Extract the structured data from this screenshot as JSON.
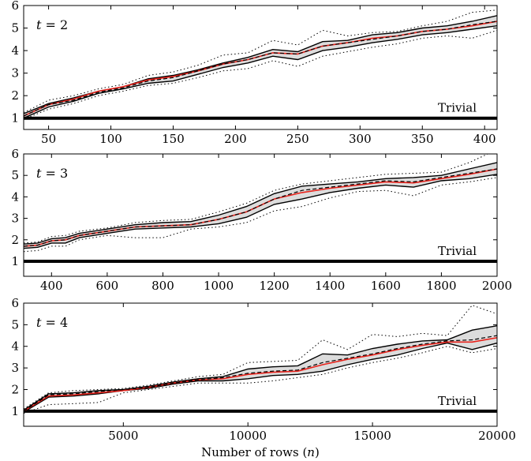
{
  "figure": {
    "xlabel": "Number of rows (n)",
    "xlabel_prefix": "Number of rows (",
    "xlabel_var": "n",
    "xlabel_suffix": ")"
  },
  "chart_data": [
    {
      "type": "line",
      "panel_label": "t = 2",
      "panel_var": "t",
      "panel_eq": " = 2",
      "trivial_label": "Trivial",
      "trivial_value": 1,
      "xlim": [
        30,
        410
      ],
      "ylim": [
        0.5,
        6
      ],
      "xticks": [
        50,
        100,
        150,
        200,
        250,
        300,
        350,
        400
      ],
      "yticks": [
        1,
        2,
        3,
        4,
        5,
        6
      ],
      "x": [
        30,
        50,
        70,
        90,
        110,
        130,
        150,
        170,
        190,
        210,
        230,
        250,
        270,
        290,
        310,
        330,
        350,
        370,
        390,
        410
      ],
      "series": [
        {
          "role": "red-line",
          "values": [
            1.1,
            1.6,
            1.85,
            2.2,
            2.4,
            2.7,
            2.85,
            3.1,
            3.4,
            3.6,
            3.9,
            3.85,
            4.2,
            4.35,
            4.55,
            4.65,
            4.85,
            4.95,
            5.1,
            5.3
          ]
        },
        {
          "role": "dashed",
          "values": [
            1.1,
            1.6,
            1.8,
            2.15,
            2.35,
            2.65,
            2.8,
            3.1,
            3.4,
            3.6,
            3.9,
            3.85,
            4.2,
            4.35,
            4.5,
            4.65,
            4.85,
            4.95,
            5.15,
            5.3
          ]
        },
        {
          "role": "upper-band",
          "values": [
            1.2,
            1.65,
            1.9,
            2.2,
            2.4,
            2.75,
            2.9,
            3.15,
            3.45,
            3.7,
            4.05,
            3.95,
            4.4,
            4.45,
            4.7,
            4.8,
            5.0,
            5.1,
            5.3,
            5.55
          ]
        },
        {
          "role": "lower-band",
          "values": [
            1.0,
            1.5,
            1.75,
            2.1,
            2.3,
            2.55,
            2.65,
            2.95,
            3.25,
            3.45,
            3.75,
            3.6,
            4.0,
            4.15,
            4.35,
            4.5,
            4.7,
            4.8,
            4.95,
            5.1
          ]
        },
        {
          "role": "upper-dotted",
          "values": [
            1.25,
            1.8,
            2.0,
            2.3,
            2.5,
            2.9,
            3.05,
            3.35,
            3.8,
            3.9,
            4.45,
            4.25,
            4.9,
            4.65,
            4.8,
            4.85,
            5.1,
            5.3,
            5.7,
            5.8
          ]
        },
        {
          "role": "lower-dotted",
          "values": [
            0.95,
            1.4,
            1.65,
            2.0,
            2.2,
            2.45,
            2.55,
            2.8,
            3.1,
            3.2,
            3.55,
            3.3,
            3.75,
            3.95,
            4.15,
            4.3,
            4.55,
            4.65,
            4.55,
            4.9
          ]
        }
      ]
    },
    {
      "type": "line",
      "panel_label": "t = 3",
      "panel_var": "t",
      "panel_eq": " = 3",
      "trivial_label": "Trivial",
      "trivial_value": 1,
      "xlim": [
        300,
        2000
      ],
      "ylim": [
        0.3,
        6
      ],
      "xticks": [
        400,
        600,
        800,
        1000,
        1200,
        1400,
        1600,
        1800,
        2000
      ],
      "yticks": [
        1,
        2,
        3,
        4,
        5,
        6
      ],
      "x": [
        300,
        350,
        400,
        450,
        500,
        600,
        700,
        800,
        900,
        1000,
        1100,
        1200,
        1300,
        1400,
        1500,
        1600,
        1700,
        1800,
        1900,
        2000
      ],
      "series": [
        {
          "role": "red-line",
          "values": [
            1.7,
            1.75,
            1.95,
            2.0,
            2.2,
            2.4,
            2.6,
            2.65,
            2.7,
            2.95,
            3.3,
            3.9,
            4.2,
            4.4,
            4.55,
            4.7,
            4.65,
            4.85,
            5.05,
            5.3
          ]
        },
        {
          "role": "dashed",
          "values": [
            1.7,
            1.75,
            1.95,
            2.0,
            2.2,
            2.4,
            2.6,
            2.65,
            2.7,
            2.95,
            3.3,
            3.9,
            4.3,
            4.45,
            4.6,
            4.75,
            4.7,
            4.9,
            5.1,
            5.3
          ]
        },
        {
          "role": "upper-band",
          "values": [
            1.8,
            1.85,
            2.05,
            2.1,
            2.3,
            2.5,
            2.7,
            2.8,
            2.85,
            3.15,
            3.55,
            4.15,
            4.5,
            4.6,
            4.7,
            4.85,
            4.9,
            5.0,
            5.3,
            5.6
          ]
        },
        {
          "role": "lower-band",
          "values": [
            1.6,
            1.65,
            1.85,
            1.85,
            2.1,
            2.3,
            2.5,
            2.55,
            2.6,
            2.75,
            3.05,
            3.65,
            3.9,
            4.2,
            4.4,
            4.55,
            4.45,
            4.75,
            4.85,
            5.05
          ]
        },
        {
          "role": "upper-dotted",
          "values": [
            1.85,
            1.9,
            2.15,
            2.2,
            2.4,
            2.55,
            2.8,
            2.9,
            2.95,
            3.3,
            3.7,
            4.3,
            4.6,
            4.75,
            4.9,
            5.05,
            5.1,
            5.15,
            5.6,
            6.2
          ]
        },
        {
          "role": "lower-dotted",
          "values": [
            1.45,
            1.5,
            1.7,
            1.7,
            2.0,
            2.2,
            2.1,
            2.1,
            2.5,
            2.6,
            2.8,
            3.35,
            3.55,
            3.95,
            4.25,
            4.3,
            4.05,
            4.55,
            4.7,
            4.9
          ]
        }
      ]
    },
    {
      "type": "line",
      "panel_label": "t = 4",
      "panel_var": "t",
      "panel_eq": " = 4",
      "trivial_label": "Trivial",
      "trivial_value": 1,
      "xlim": [
        1000,
        20000
      ],
      "ylim": [
        0.3,
        6
      ],
      "xticks": [
        5000,
        10000,
        15000,
        20000
      ],
      "yticks": [
        1,
        2,
        3,
        4,
        5,
        6
      ],
      "x": [
        1000,
        2000,
        3000,
        4000,
        5000,
        6000,
        7000,
        8000,
        9000,
        10000,
        11000,
        12000,
        13000,
        14000,
        15000,
        16000,
        17000,
        18000,
        19000,
        20000
      ],
      "series": [
        {
          "role": "red-line",
          "values": [
            1.0,
            1.7,
            1.75,
            1.85,
            1.95,
            2.1,
            2.3,
            2.45,
            2.5,
            2.7,
            2.8,
            2.85,
            3.15,
            3.4,
            3.6,
            3.85,
            4.05,
            4.2,
            4.2,
            4.4
          ]
        },
        {
          "role": "dashed",
          "values": [
            1.0,
            1.75,
            1.8,
            1.9,
            2.0,
            2.1,
            2.3,
            2.45,
            2.55,
            2.75,
            2.85,
            2.9,
            3.25,
            3.45,
            3.65,
            3.9,
            4.1,
            4.25,
            4.3,
            4.5
          ]
        },
        {
          "role": "upper-band",
          "values": [
            1.05,
            1.8,
            1.85,
            1.95,
            2.0,
            2.15,
            2.35,
            2.5,
            2.6,
            2.95,
            3.05,
            3.1,
            3.65,
            3.6,
            3.9,
            4.1,
            4.25,
            4.3,
            4.75,
            4.95
          ]
        },
        {
          "role": "lower-band",
          "values": [
            0.95,
            1.65,
            1.7,
            1.8,
            1.95,
            2.05,
            2.25,
            2.4,
            2.4,
            2.5,
            2.65,
            2.7,
            2.85,
            3.15,
            3.4,
            3.6,
            3.9,
            4.15,
            3.85,
            4.15
          ]
        },
        {
          "role": "upper-dotted",
          "values": [
            1.1,
            1.85,
            1.95,
            2.0,
            2.05,
            2.2,
            2.4,
            2.6,
            2.7,
            3.25,
            3.3,
            3.35,
            4.3,
            3.85,
            4.55,
            4.45,
            4.6,
            4.5,
            5.9,
            5.5
          ]
        },
        {
          "role": "lower-dotted",
          "values": [
            0.9,
            1.3,
            1.35,
            1.4,
            1.85,
            2.0,
            2.15,
            2.3,
            2.3,
            2.3,
            2.4,
            2.55,
            2.7,
            3.0,
            3.25,
            3.45,
            3.7,
            4.0,
            3.7,
            3.9
          ]
        }
      ]
    }
  ],
  "colors": {
    "red_line": "#e8231c",
    "band_fill": "#dcdcdc",
    "ink": "#000000"
  }
}
